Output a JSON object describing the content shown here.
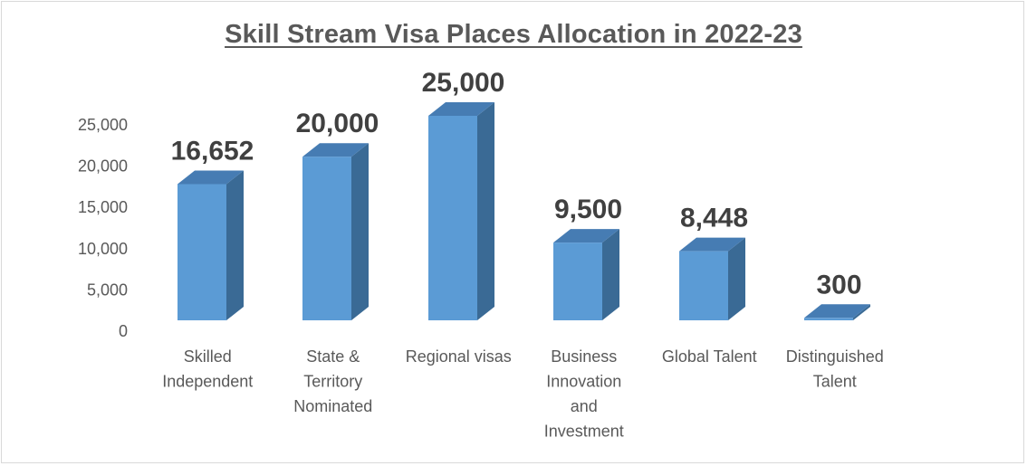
{
  "chart_data": {
    "type": "bar",
    "style": "3d-column",
    "title": "Skill Stream Visa Places Allocation in 2022-23",
    "xlabel": "",
    "ylabel": "",
    "categories": [
      [
        "Skilled",
        "Independent"
      ],
      [
        "State &",
        "Territory",
        "Nominated"
      ],
      [
        "Regional visas"
      ],
      [
        "Business",
        "Innovation",
        "and",
        "Investment"
      ],
      [
        "Global Talent"
      ],
      [
        "Distinguished",
        "Talent"
      ]
    ],
    "values": [
      16652,
      20000,
      25000,
      9500,
      8448,
      300
    ],
    "data_labels": [
      "16,652",
      "20,000",
      "25,000",
      "9,500",
      "8,448",
      "300"
    ],
    "y_ticks": [
      0,
      5000,
      10000,
      15000,
      20000,
      25000
    ],
    "y_tick_labels": [
      "0",
      "5,000",
      "10,000",
      "15,000",
      "20,000",
      "25,000"
    ],
    "ylim": [
      0,
      25000
    ],
    "grid": false,
    "legend": "none",
    "colors": {
      "front": "#5b9bd5",
      "side": "#3a6a95",
      "top": "#467cb3"
    }
  }
}
